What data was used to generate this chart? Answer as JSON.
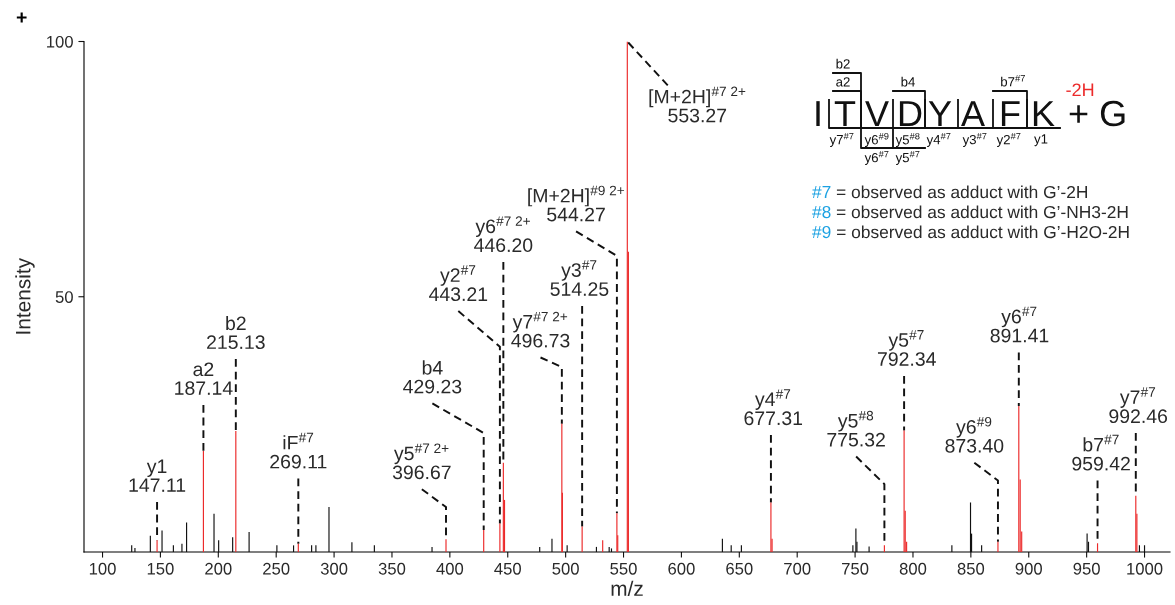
{
  "chart_data": {
    "type": "bar",
    "xlabel": "m/z",
    "ylabel": "Intensity",
    "xlim": [
      84,
      1022
    ],
    "ylim": [
      0,
      100
    ],
    "xticks": [
      100,
      150,
      200,
      250,
      300,
      350,
      400,
      450,
      500,
      550,
      600,
      650,
      700,
      750,
      800,
      850,
      900,
      950,
      1000
    ],
    "yticks": [
      50,
      100
    ],
    "series": [
      {
        "color": "#ec2a2a",
        "x": [
          147.11,
          187.14,
          215.13,
          269.11,
          396.67,
          429.23,
          443.21,
          446.2,
          447.2,
          496.73,
          497.2,
          514.25,
          532.0,
          544.27,
          545.0,
          553.27,
          554.2,
          677.31,
          678.3,
          775.32,
          792.34,
          793.3,
          794.5,
          873.4,
          891.41,
          892.6,
          893.9,
          959.42,
          992.46,
          993.4
        ],
        "values": [
          2.3,
          19.8,
          23.7,
          1.6,
          2.5,
          4.3,
          5.6,
          17.5,
          10.2,
          25.1,
          11.6,
          5,
          2.3,
          7.6,
          3.3,
          100,
          58.8,
          9.7,
          2.6,
          1.3,
          23.8,
          8.1,
          2,
          2,
          28.6,
          14.2,
          4,
          1.7,
          11,
          7.5
        ]
      },
      {
        "color": "#111111",
        "x": [
          125.2,
          128,
          141.3,
          151.4,
          161.2,
          168.6,
          172.6,
          196.3,
          200.3,
          212.4,
          226.6,
          250.6,
          265,
          280.6,
          284.3,
          295.6,
          315.4,
          334.8,
          384.6,
          477.6,
          488.2,
          501.3,
          526.6,
          537.6,
          539.6,
          635.4,
          643,
          651.8,
          748.1,
          750.7,
          751.6,
          762.1,
          833.6,
          849.7,
          850.6,
          859.3,
          950.4,
          951.6,
          995.6,
          1000
        ],
        "values": [
          1.3,
          0.8,
          3.2,
          4.2,
          1.3,
          1.6,
          5.8,
          7.5,
          2.3,
          2.9,
          3.9,
          1.3,
          1.3,
          1.3,
          1.3,
          8.8,
          1.9,
          1.3,
          1,
          1,
          2.6,
          1.3,
          1,
          1,
          0.7,
          2.6,
          1.3,
          1.3,
          1.3,
          4.6,
          2,
          1.1,
          1.3,
          9.7,
          3.6,
          1.3,
          3.6,
          2,
          1.3,
          1.3
        ]
      }
    ],
    "annotations": [
      {
        "text": "y1\n147.11",
        "x": 147.11,
        "y": 2.3
      },
      {
        "text": "a2\n187.14",
        "x": 187.14,
        "y": 19.8
      },
      {
        "text": "b2\n215.13",
        "x": 215.13,
        "y": 23.7
      },
      {
        "text": "iF$^{#7}$\n269.11",
        "x": 269.11,
        "y": 1.6
      },
      {
        "text": "y5$^{#7 2+}$\n396.67",
        "x": 396.67,
        "y": 2.5
      },
      {
        "text": "b4\n429.23",
        "x": 429.23,
        "y": 4.3
      },
      {
        "text": "y2$^{#7}$\n443.21",
        "x": 443.21,
        "y": 5.6
      },
      {
        "text": "y6$^{#7 2+}$\n446.20",
        "x": 446.2,
        "y": 17.5
      },
      {
        "text": "y7$^{#7 2+}$\n496.73",
        "x": 496.73,
        "y": 25.1
      },
      {
        "text": "y3$^{#7}$\n514.25",
        "x": 514.25,
        "y": 5
      },
      {
        "text": "[M+2H]$^{#9 2+}$\n544.27",
        "x": 544.27,
        "y": 7.6
      },
      {
        "text": "[M+2H]$^{#7 2+}$\n553.27",
        "x": 553.27,
        "y": 100
      },
      {
        "text": "y4$^{#7}$\n677.31",
        "x": 677.31,
        "y": 9.7
      },
      {
        "text": "y5$^{#8}$\n775.32",
        "x": 775.32,
        "y": 1.3
      },
      {
        "text": "y5$^{#7}$\n792.34",
        "x": 792.34,
        "y": 23.8
      },
      {
        "text": "y6$^{#9}$\n873.40",
        "x": 873.4,
        "y": 2
      },
      {
        "text": "y6$^{#7}$\n891.41",
        "x": 891.41,
        "y": 28.6
      },
      {
        "text": "b7$^{#7}$\n959.42",
        "x": 959.42,
        "y": 1.7
      },
      {
        "text": "y7$^{#7}$\n992.46",
        "x": 992.46,
        "y": 11
      },
      "+",
      "ITVDYAFK",
      "+ G",
      "-2H",
      "b2",
      "a2",
      "b4",
      "b7$^{#7}$",
      "y7$^{#7}$",
      "y6$^{#9}$",
      "y5$^{#8}$",
      "y4$^{#7}$",
      "y3$^{#7}$",
      "y2$^{#7}$",
      "y1",
      "y6$^{#7}$",
      "y5$^{#7}$",
      "#7 = observed as adduct with G’-2H",
      "#8 = observed as adduct with G’-NH3-2H",
      "#9 = observed as adduct with G’-H2O-2H"
    ]
  }
}
